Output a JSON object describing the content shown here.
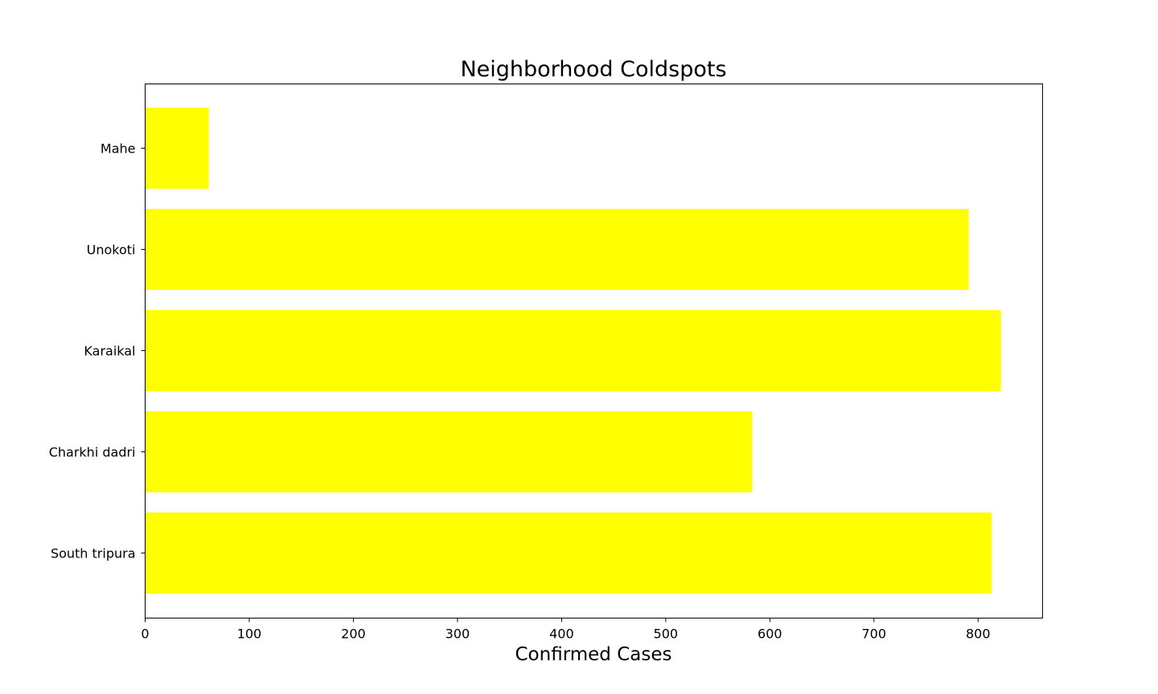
{
  "chart_data": {
    "type": "bar",
    "orientation": "horizontal",
    "title": "Neighborhood Coldspots",
    "xlabel": "Confirmed Cases",
    "ylabel": "",
    "categories": [
      "Mahe",
      "Unokoti",
      "Karaikal",
      "Charkhi dadri",
      "South tripura"
    ],
    "values": [
      61,
      791,
      822,
      583,
      813
    ],
    "xlim": [
      0,
      862
    ],
    "xticks": [
      0,
      100,
      200,
      300,
      400,
      500,
      600,
      700,
      800
    ],
    "bar_color": "#ffff00",
    "grid": false,
    "legend": "none"
  }
}
